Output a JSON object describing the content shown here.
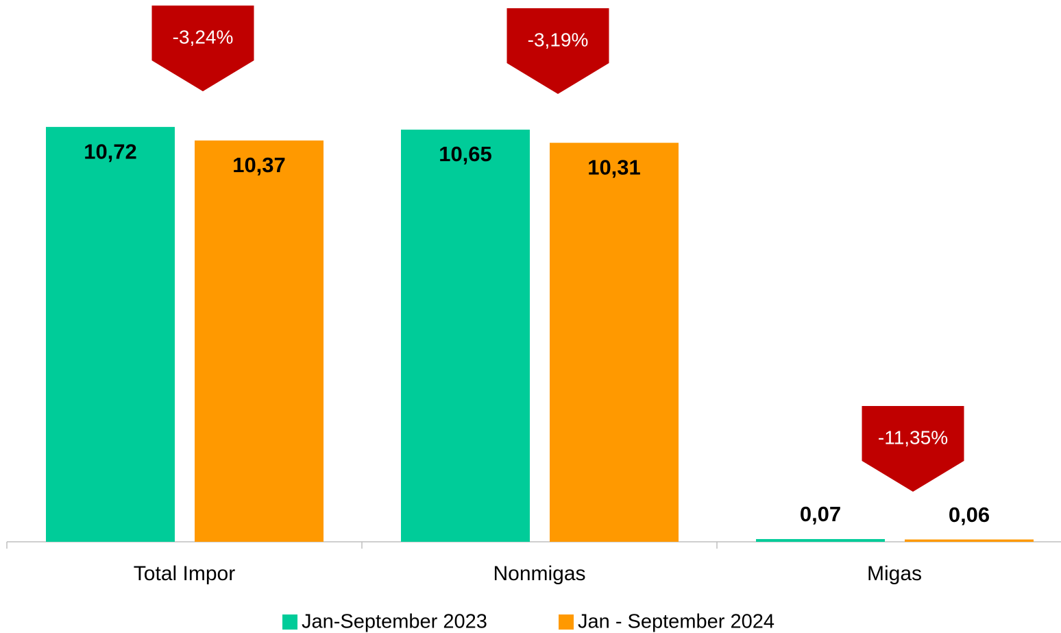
{
  "chart_data": {
    "type": "bar",
    "categories": [
      "Total Impor",
      "Nonmigas",
      "Migas"
    ],
    "series": [
      {
        "name": "Jan-September 2023",
        "color": "#00cc99",
        "values": [
          10.72,
          10.65,
          0.07
        ],
        "value_labels": [
          "10,72",
          "10,65",
          "0,07"
        ]
      },
      {
        "name": "Jan - September 2024",
        "color": "#ff9900",
        "values": [
          10.37,
          10.31,
          0.06
        ],
        "value_labels": [
          "10,37",
          "10,31",
          "0,06"
        ]
      }
    ],
    "annotations": [
      "-3,24%",
      "-3,19%",
      "-11,35%"
    ],
    "annotation_color": "#c00000",
    "ylim": [
      0,
      14
    ],
    "legend": "bottom"
  }
}
